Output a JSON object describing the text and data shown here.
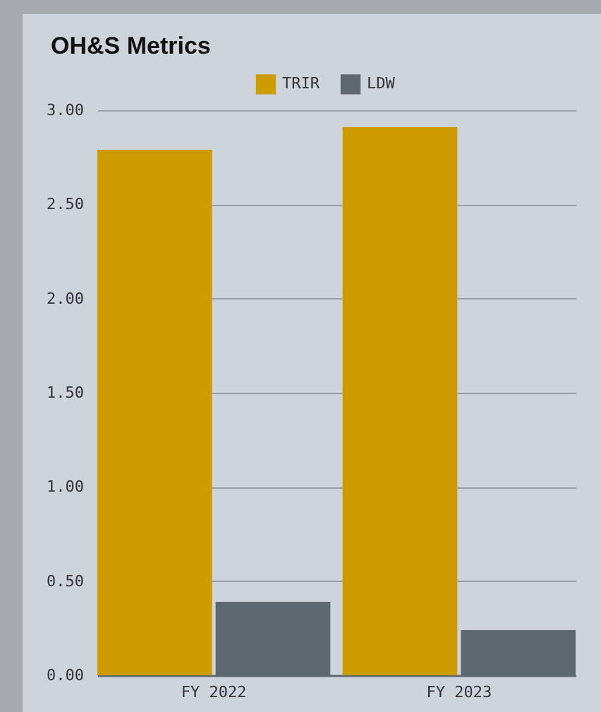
{
  "chart_data": {
    "type": "bar",
    "title": "OH&S Metrics",
    "categories": [
      "FY 2022",
      "FY 2023"
    ],
    "series": [
      {
        "name": "TRIR",
        "color": "#cf9c00",
        "values": [
          2.79,
          2.91
        ]
      },
      {
        "name": "LDW",
        "color": "#5d6870",
        "values": [
          0.39,
          0.24
        ]
      }
    ],
    "ylim": [
      0,
      3
    ],
    "yticks": [
      {
        "value": 0,
        "label": "0.00"
      },
      {
        "value": 0.5,
        "label": "0.50"
      },
      {
        "value": 1,
        "label": "1.00"
      },
      {
        "value": 1.5,
        "label": "1.50"
      },
      {
        "value": 2,
        "label": "2.00"
      },
      {
        "value": 2.5,
        "label": "2.50"
      },
      {
        "value": 3,
        "label": "3.00"
      }
    ],
    "grid": "y",
    "legend": "top"
  }
}
